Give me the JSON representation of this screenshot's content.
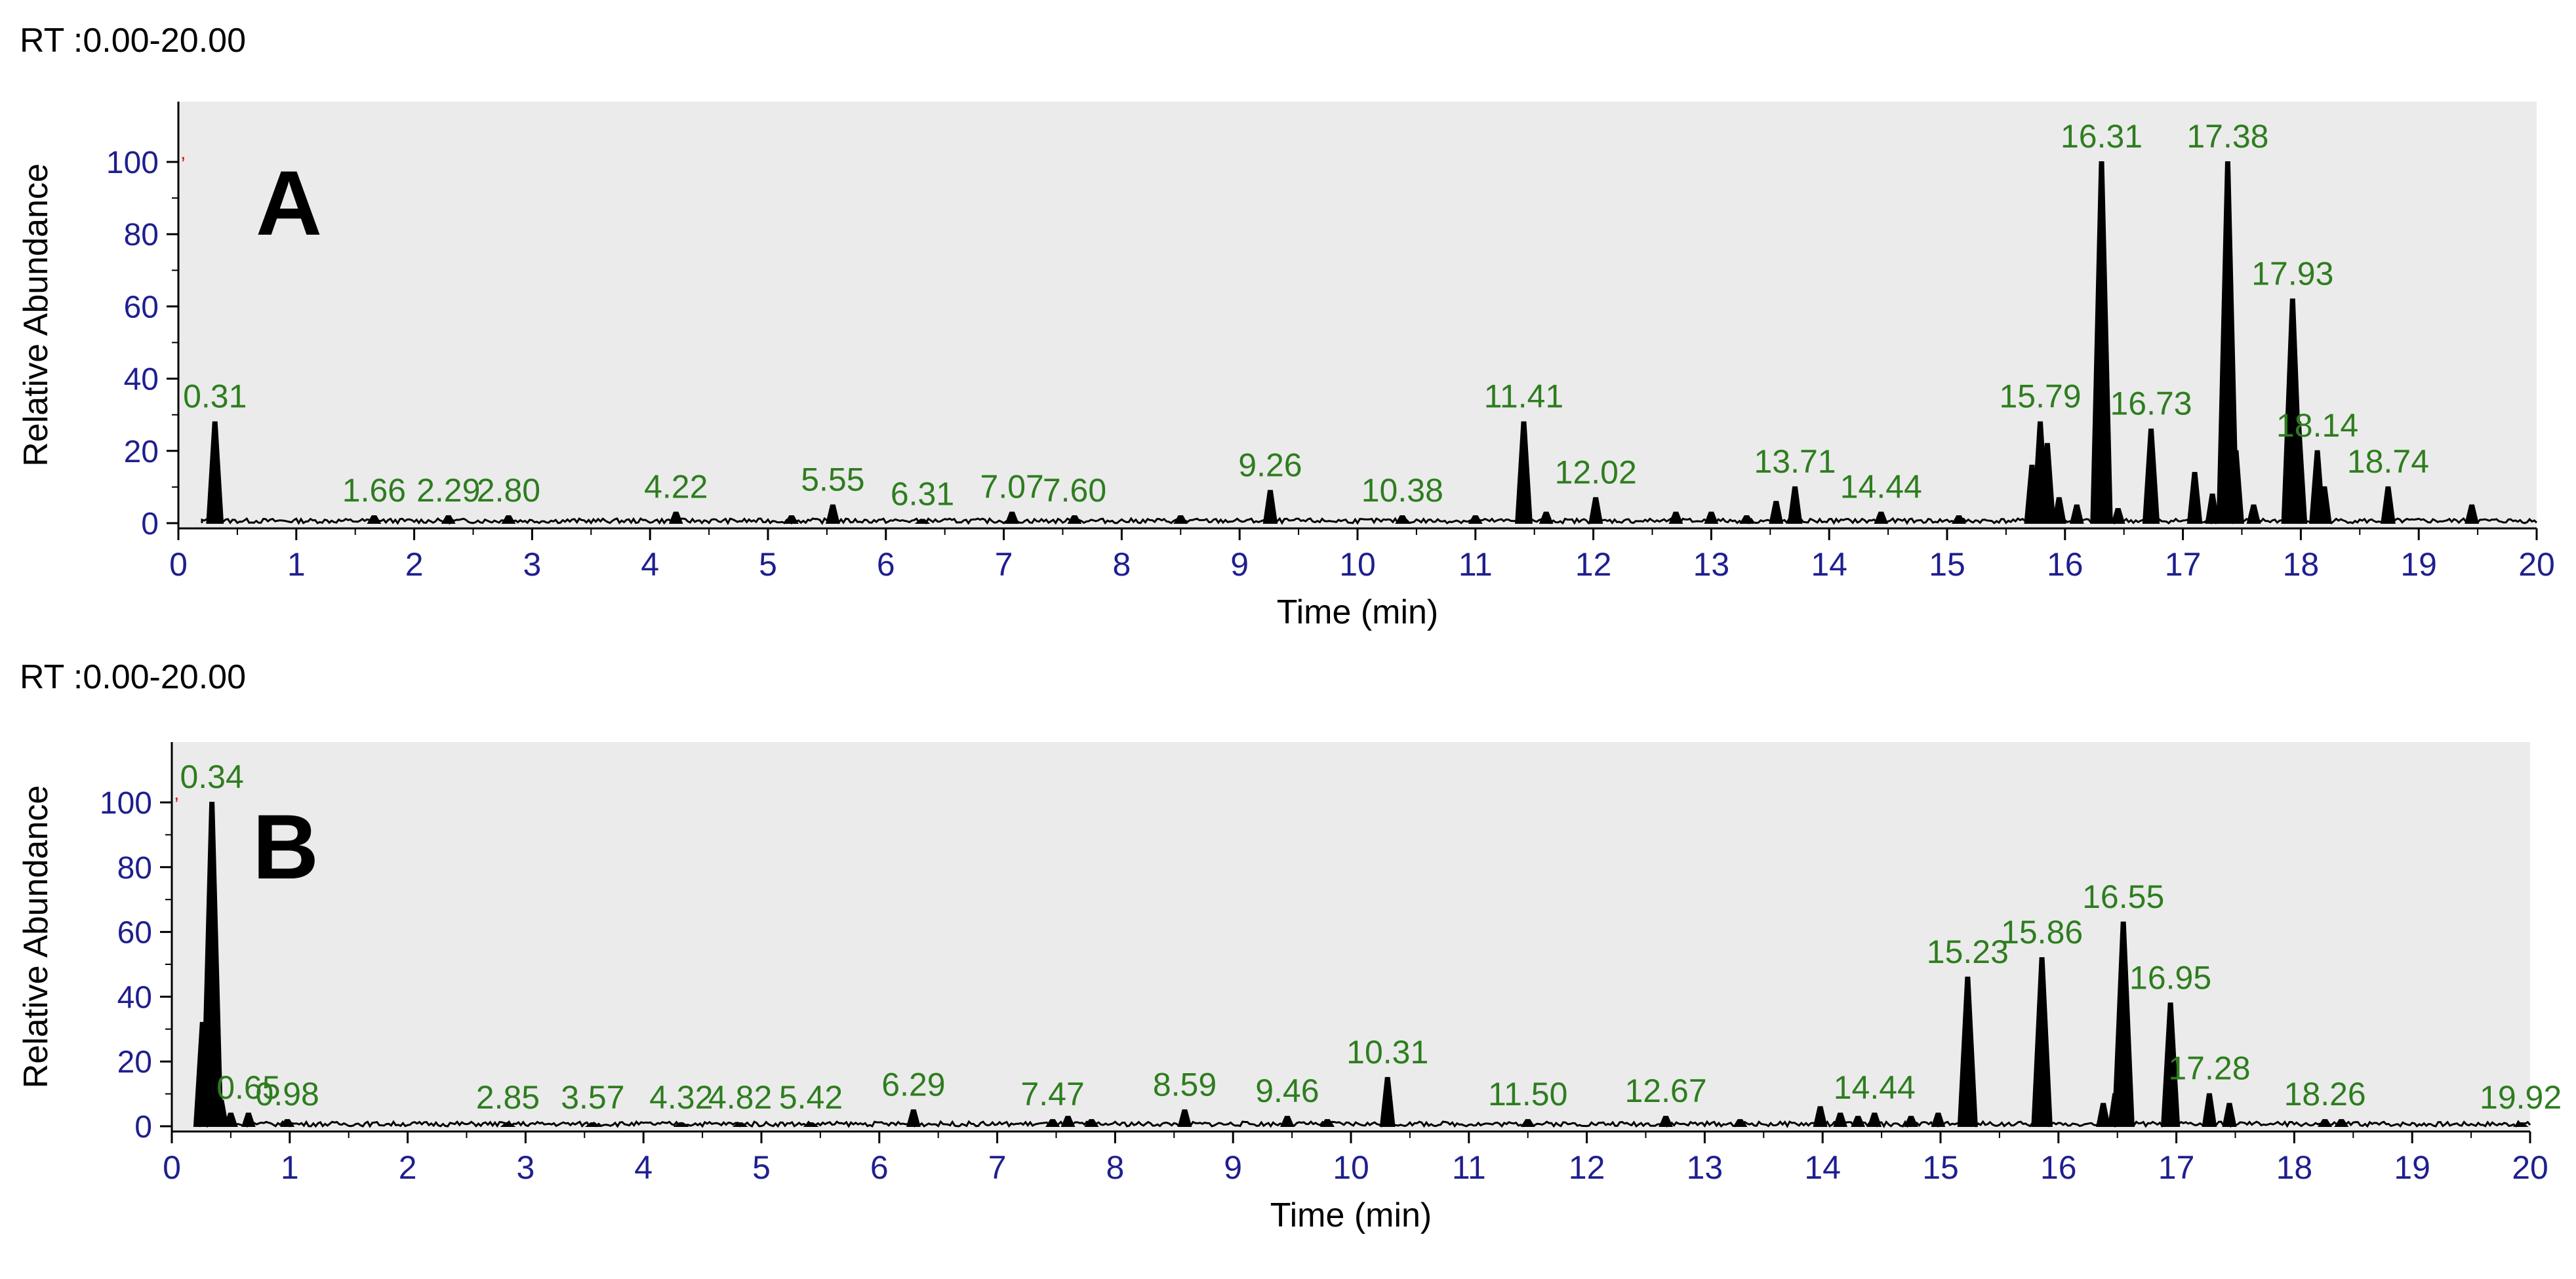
{
  "chart_data": [
    {
      "type": "line",
      "panel_label": "A",
      "rt_range": "RT :0.00-20.00",
      "xlabel": "Time (min)",
      "ylabel": "Relative Abundance",
      "xlim": [
        0,
        20
      ],
      "ylim": [
        0,
        100
      ],
      "xticks": [
        "0",
        "1",
        "2",
        "3",
        "4",
        "5",
        "6",
        "7",
        "8",
        "9",
        "10",
        "11",
        "12",
        "13",
        "14",
        "15",
        "16",
        "17",
        "18",
        "19",
        "20"
      ],
      "yticks": [
        "0",
        "20",
        "40",
        "60",
        "80",
        "100"
      ],
      "colors": {
        "trace": "#000000",
        "peak_label": "#2e7d1f",
        "axis_text": "#1f1f8f",
        "plot_bg": "#ebebeb"
      },
      "peak_labels": [
        {
          "text": "0.31",
          "x": 0.31,
          "y": 28
        },
        {
          "text": "1.66",
          "x": 1.66,
          "y": 2
        },
        {
          "text": "2.29",
          "x": 2.29,
          "y": 2
        },
        {
          "text": "2.80",
          "x": 2.8,
          "y": 2
        },
        {
          "text": "4.22",
          "x": 4.22,
          "y": 3
        },
        {
          "text": "5.55",
          "x": 5.55,
          "y": 5
        },
        {
          "text": "6.31",
          "x": 6.31,
          "y": 1
        },
        {
          "text": "7.07",
          "x": 7.07,
          "y": 3
        },
        {
          "text": "7.60",
          "x": 7.6,
          "y": 2
        },
        {
          "text": "9.26",
          "x": 9.26,
          "y": 9
        },
        {
          "text": "10.38",
          "x": 10.38,
          "y": 2
        },
        {
          "text": "11.41",
          "x": 11.41,
          "y": 28
        },
        {
          "text": "12.02",
          "x": 12.02,
          "y": 7
        },
        {
          "text": "13.71",
          "x": 13.71,
          "y": 10
        },
        {
          "text": "14.44",
          "x": 14.44,
          "y": 3
        },
        {
          "text": "15.79",
          "x": 15.79,
          "y": 28
        },
        {
          "text": "16.31",
          "x": 16.31,
          "y": 100
        },
        {
          "text": "16.73",
          "x": 16.73,
          "y": 26
        },
        {
          "text": "17.38",
          "x": 17.38,
          "y": 100
        },
        {
          "text": "17.93",
          "x": 17.93,
          "y": 62
        },
        {
          "text": "18.14",
          "x": 18.14,
          "y": 20
        },
        {
          "text": "18.74",
          "x": 18.74,
          "y": 10
        }
      ],
      "minor_peaks": [
        {
          "x": 5.2,
          "y": 2
        },
        {
          "x": 8.5,
          "y": 2
        },
        {
          "x": 11.0,
          "y": 2
        },
        {
          "x": 11.6,
          "y": 3
        },
        {
          "x": 12.7,
          "y": 3
        },
        {
          "x": 13.0,
          "y": 3
        },
        {
          "x": 13.3,
          "y": 2
        },
        {
          "x": 13.55,
          "y": 6
        },
        {
          "x": 15.1,
          "y": 2
        },
        {
          "x": 15.72,
          "y": 16
        },
        {
          "x": 15.85,
          "y": 22
        },
        {
          "x": 15.95,
          "y": 7
        },
        {
          "x": 16.1,
          "y": 5
        },
        {
          "x": 16.45,
          "y": 4
        },
        {
          "x": 17.1,
          "y": 14
        },
        {
          "x": 17.25,
          "y": 8
        },
        {
          "x": 17.45,
          "y": 20
        },
        {
          "x": 17.6,
          "y": 5
        },
        {
          "x": 17.98,
          "y": 28
        },
        {
          "x": 18.2,
          "y": 10
        },
        {
          "x": 19.45,
          "y": 5
        }
      ]
    },
    {
      "type": "line",
      "panel_label": "B",
      "rt_range": "RT :0.00-20.00",
      "xlabel": "Time (min)",
      "ylabel": "Relative Abundance",
      "xlim": [
        0,
        20
      ],
      "ylim": [
        0,
        100
      ],
      "xticks": [
        "0",
        "1",
        "2",
        "3",
        "4",
        "5",
        "6",
        "7",
        "8",
        "9",
        "10",
        "11",
        "12",
        "13",
        "14",
        "15",
        "16",
        "17",
        "18",
        "19",
        "20"
      ],
      "yticks": [
        "0",
        "20",
        "40",
        "60",
        "80",
        "100"
      ],
      "colors": {
        "trace": "#000000",
        "peak_label": "#2e7d1f",
        "axis_text": "#1f1f8f",
        "plot_bg": "#ebebeb"
      },
      "peak_labels": [
        {
          "text": "0.34",
          "x": 0.34,
          "y": 100
        },
        {
          "text": "0.65",
          "x": 0.65,
          "y": 4
        },
        {
          "text": "0.98",
          "x": 0.98,
          "y": 2
        },
        {
          "text": "2.85",
          "x": 2.85,
          "y": 1
        },
        {
          "text": "3.57",
          "x": 3.57,
          "y": 1
        },
        {
          "text": "4.32",
          "x": 4.32,
          "y": 1
        },
        {
          "text": "4.82",
          "x": 4.82,
          "y": 1
        },
        {
          "text": "5.42",
          "x": 5.42,
          "y": 1
        },
        {
          "text": "6.29",
          "x": 6.29,
          "y": 5
        },
        {
          "text": "7.47",
          "x": 7.47,
          "y": 2
        },
        {
          "text": "8.59",
          "x": 8.59,
          "y": 5
        },
        {
          "text": "9.46",
          "x": 9.46,
          "y": 3
        },
        {
          "text": "10.31",
          "x": 10.31,
          "y": 15
        },
        {
          "text": "11.50",
          "x": 11.5,
          "y": 2
        },
        {
          "text": "12.67",
          "x": 12.67,
          "y": 3
        },
        {
          "text": "14.44",
          "x": 14.44,
          "y": 4
        },
        {
          "text": "15.23",
          "x": 15.23,
          "y": 46
        },
        {
          "text": "15.86",
          "x": 15.86,
          "y": 52
        },
        {
          "text": "16.55",
          "x": 16.55,
          "y": 63
        },
        {
          "text": "16.95",
          "x": 16.95,
          "y": 38
        },
        {
          "text": "17.28",
          "x": 17.28,
          "y": 10
        },
        {
          "text": "18.26",
          "x": 18.26,
          "y": 2
        },
        {
          "text": "19.92",
          "x": 19.92,
          "y": 1
        }
      ],
      "minor_peaks": [
        {
          "x": 0.26,
          "y": 32
        },
        {
          "x": 0.3,
          "y": 20
        },
        {
          "x": 0.42,
          "y": 8
        },
        {
          "x": 0.5,
          "y": 4
        },
        {
          "x": 7.6,
          "y": 3
        },
        {
          "x": 7.8,
          "y": 2
        },
        {
          "x": 9.8,
          "y": 2
        },
        {
          "x": 13.3,
          "y": 2
        },
        {
          "x": 13.98,
          "y": 6
        },
        {
          "x": 14.15,
          "y": 4
        },
        {
          "x": 14.3,
          "y": 3
        },
        {
          "x": 14.75,
          "y": 3
        },
        {
          "x": 14.98,
          "y": 4
        },
        {
          "x": 16.38,
          "y": 7
        },
        {
          "x": 16.48,
          "y": 10
        },
        {
          "x": 17.45,
          "y": 7
        },
        {
          "x": 18.4,
          "y": 2
        }
      ]
    }
  ]
}
